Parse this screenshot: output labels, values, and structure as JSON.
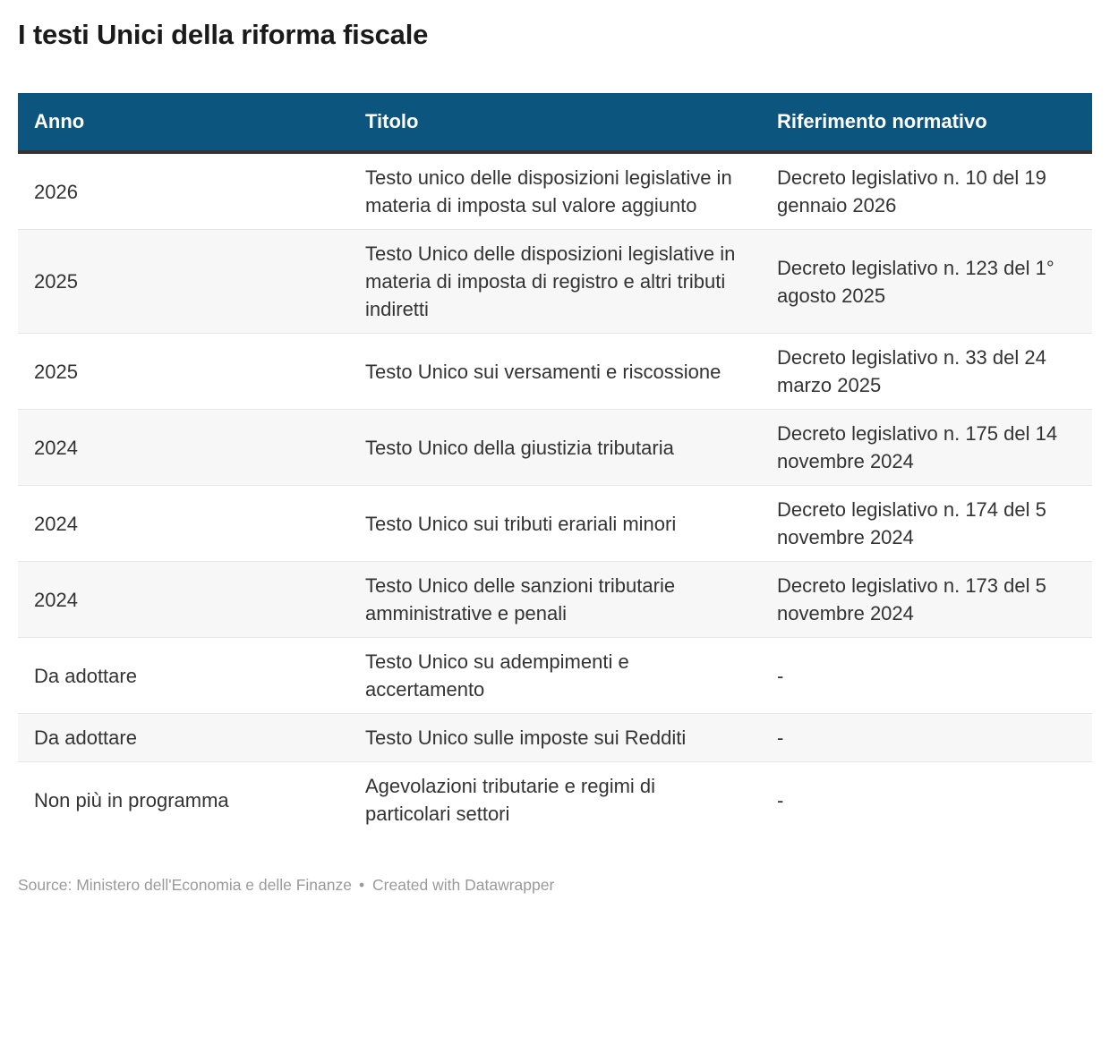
{
  "title": "I testi Unici della riforma fiscale",
  "chart_data": {
    "type": "table",
    "title": "I testi Unici della riforma fiscale",
    "columns": [
      "Anno",
      "Titolo",
      "Riferimento normativo"
    ],
    "rows": [
      [
        "2026",
        "Testo unico delle disposizioni legislative in materia di imposta sul valore aggiunto",
        "Decreto legislativo n. 10 del 19 gennaio 2026"
      ],
      [
        "2025",
        "Testo Unico delle disposizioni legislative in materia di imposta di registro e altri tributi indiretti",
        "Decreto legislativo n. 123 del 1° agosto 2025"
      ],
      [
        "2025",
        "Testo Unico sui versamenti e riscossione",
        "Decreto legislativo n. 33 del 24 marzo 2025"
      ],
      [
        "2024",
        "Testo Unico della giustizia tributaria",
        "Decreto legislativo n. 175 del 14 novembre 2024"
      ],
      [
        "2024",
        "Testo Unico sui tributi erariali minori",
        "Decreto legislativo n. 174 del 5 novembre 2024"
      ],
      [
        "2024",
        "Testo Unico delle sanzioni tributarie amministrative e penali",
        "Decreto legislativo n. 173 del 5 novembre 2024"
      ],
      [
        "Da adottare",
        "Testo Unico su adempimenti e accertamento",
        "-"
      ],
      [
        "Da adottare",
        "Testo Unico sulle imposte sui Redditi",
        "-"
      ],
      [
        "Non più in programma",
        "Agevolazioni tributarie e regimi di particolari settori",
        "-"
      ]
    ],
    "source": "Ministero dell'Economia e delle Finanze",
    "layout": {
      "header_style": "filled",
      "row_striping": true,
      "legend_position": "none"
    }
  },
  "colors": {
    "header_bg": "#0c557e",
    "header_text": "#ffffff",
    "row_alt_bg": "#f7f7f7",
    "row_border": "#e6e6e6",
    "header_bottom_border": "#333333",
    "body_text": "#333333",
    "title_text": "#1a1a1a",
    "footer_text": "#9a9a9a"
  },
  "footer": {
    "source_label": "Source:",
    "source_text": "Ministero dell'Economia e delle Finanze",
    "separator": "•",
    "credit": "Created with Datawrapper"
  }
}
